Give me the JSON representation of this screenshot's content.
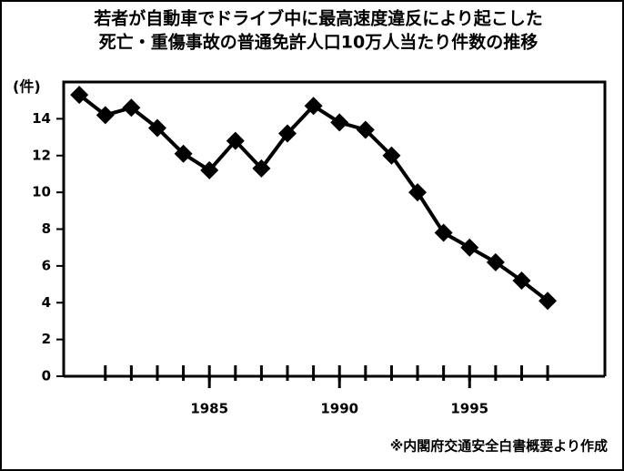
{
  "chart_data": {
    "type": "line",
    "title_lines": [
      "若者が自動車でドライブ中に最高速度違反により起こした",
      "死亡・重傷事故の普通免許人口10万人当たり件数の推移"
    ],
    "y_label": "(件)",
    "source": "※内閣府交通安全白書概要より作成",
    "x": [
      1980,
      1981,
      1982,
      1983,
      1984,
      1985,
      1986,
      1987,
      1988,
      1989,
      1990,
      1991,
      1992,
      1993,
      1994,
      1995,
      1996,
      1997,
      1998
    ],
    "series": [
      {
        "color": "#000000",
        "values": [
          15.3,
          14.2,
          14.6,
          13.5,
          12.1,
          11.2,
          12.8,
          11.3,
          13.2,
          14.7,
          13.8,
          13.4,
          12.0,
          10.0,
          7.8,
          7.0,
          6.2,
          5.2,
          4.1
        ]
      }
    ],
    "xlim": [
      1979.4,
      2000.2
    ],
    "xticks": [
      1985,
      1990,
      1995
    ],
    "minor_xticks": [
      1981,
      1982,
      1983,
      1984,
      1985,
      1986,
      1987,
      1988,
      1989,
      1990,
      1991,
      1992,
      1993,
      1994,
      1995,
      1996,
      1997,
      1998
    ],
    "ylim": [
      0,
      16
    ],
    "yticks": [
      0,
      2,
      4,
      6,
      8,
      10,
      12,
      14
    ],
    "grid": false
  }
}
